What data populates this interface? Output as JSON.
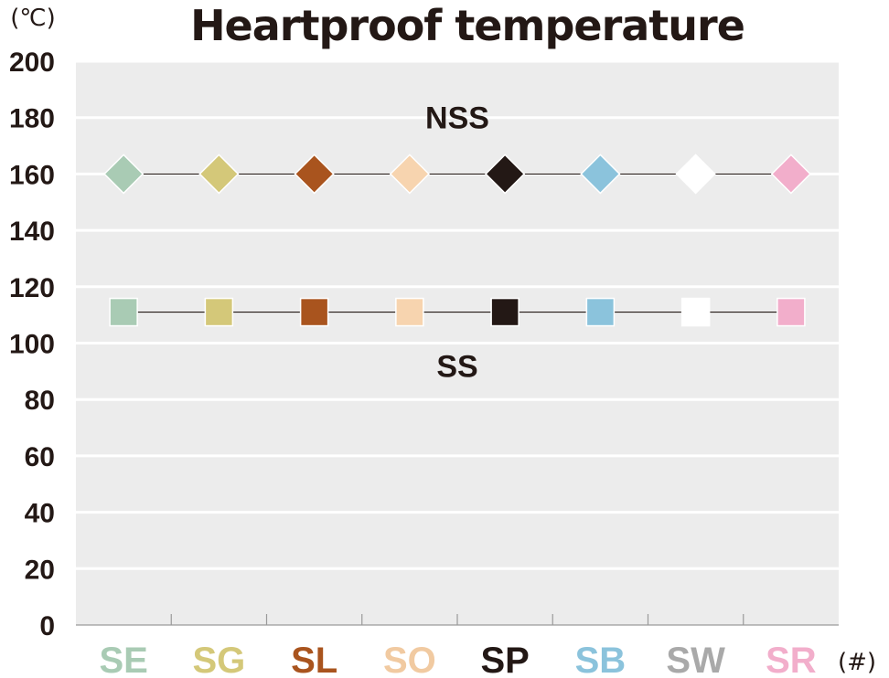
{
  "chart_data": {
    "type": "line",
    "title": "Heartproof temperature",
    "y_unit": "(℃)",
    "x_unit": "(#)",
    "ylim": [
      0,
      200
    ],
    "y_ticks": [
      "0",
      "20",
      "40",
      "60",
      "80",
      "100",
      "120",
      "140",
      "160",
      "180",
      "200"
    ],
    "grid": true,
    "background": "#ececec",
    "categories": [
      "SE",
      "SG",
      "SL",
      "SO",
      "SP",
      "SB",
      "SW",
      "SR"
    ],
    "category_colors": [
      "#a9cbb4",
      "#d4c879",
      "#a9541e",
      "#f1caa1",
      "#231815",
      "#8bc3dc",
      "#a9a9a9",
      "#f2aecb"
    ],
    "marker_colors": [
      "#a9cbb4",
      "#d4c879",
      "#a9541e",
      "#f7d4af",
      "#231815",
      "#8bc3dc",
      "#ffffff",
      "#f2aecb"
    ],
    "series": [
      {
        "name": "NSS",
        "marker": "diamond",
        "values": [
          160,
          160,
          160,
          160,
          160,
          160,
          160,
          160
        ]
      },
      {
        "name": "SS",
        "marker": "square",
        "values": [
          111,
          111,
          111,
          111,
          111,
          111,
          111,
          111
        ]
      }
    ]
  }
}
